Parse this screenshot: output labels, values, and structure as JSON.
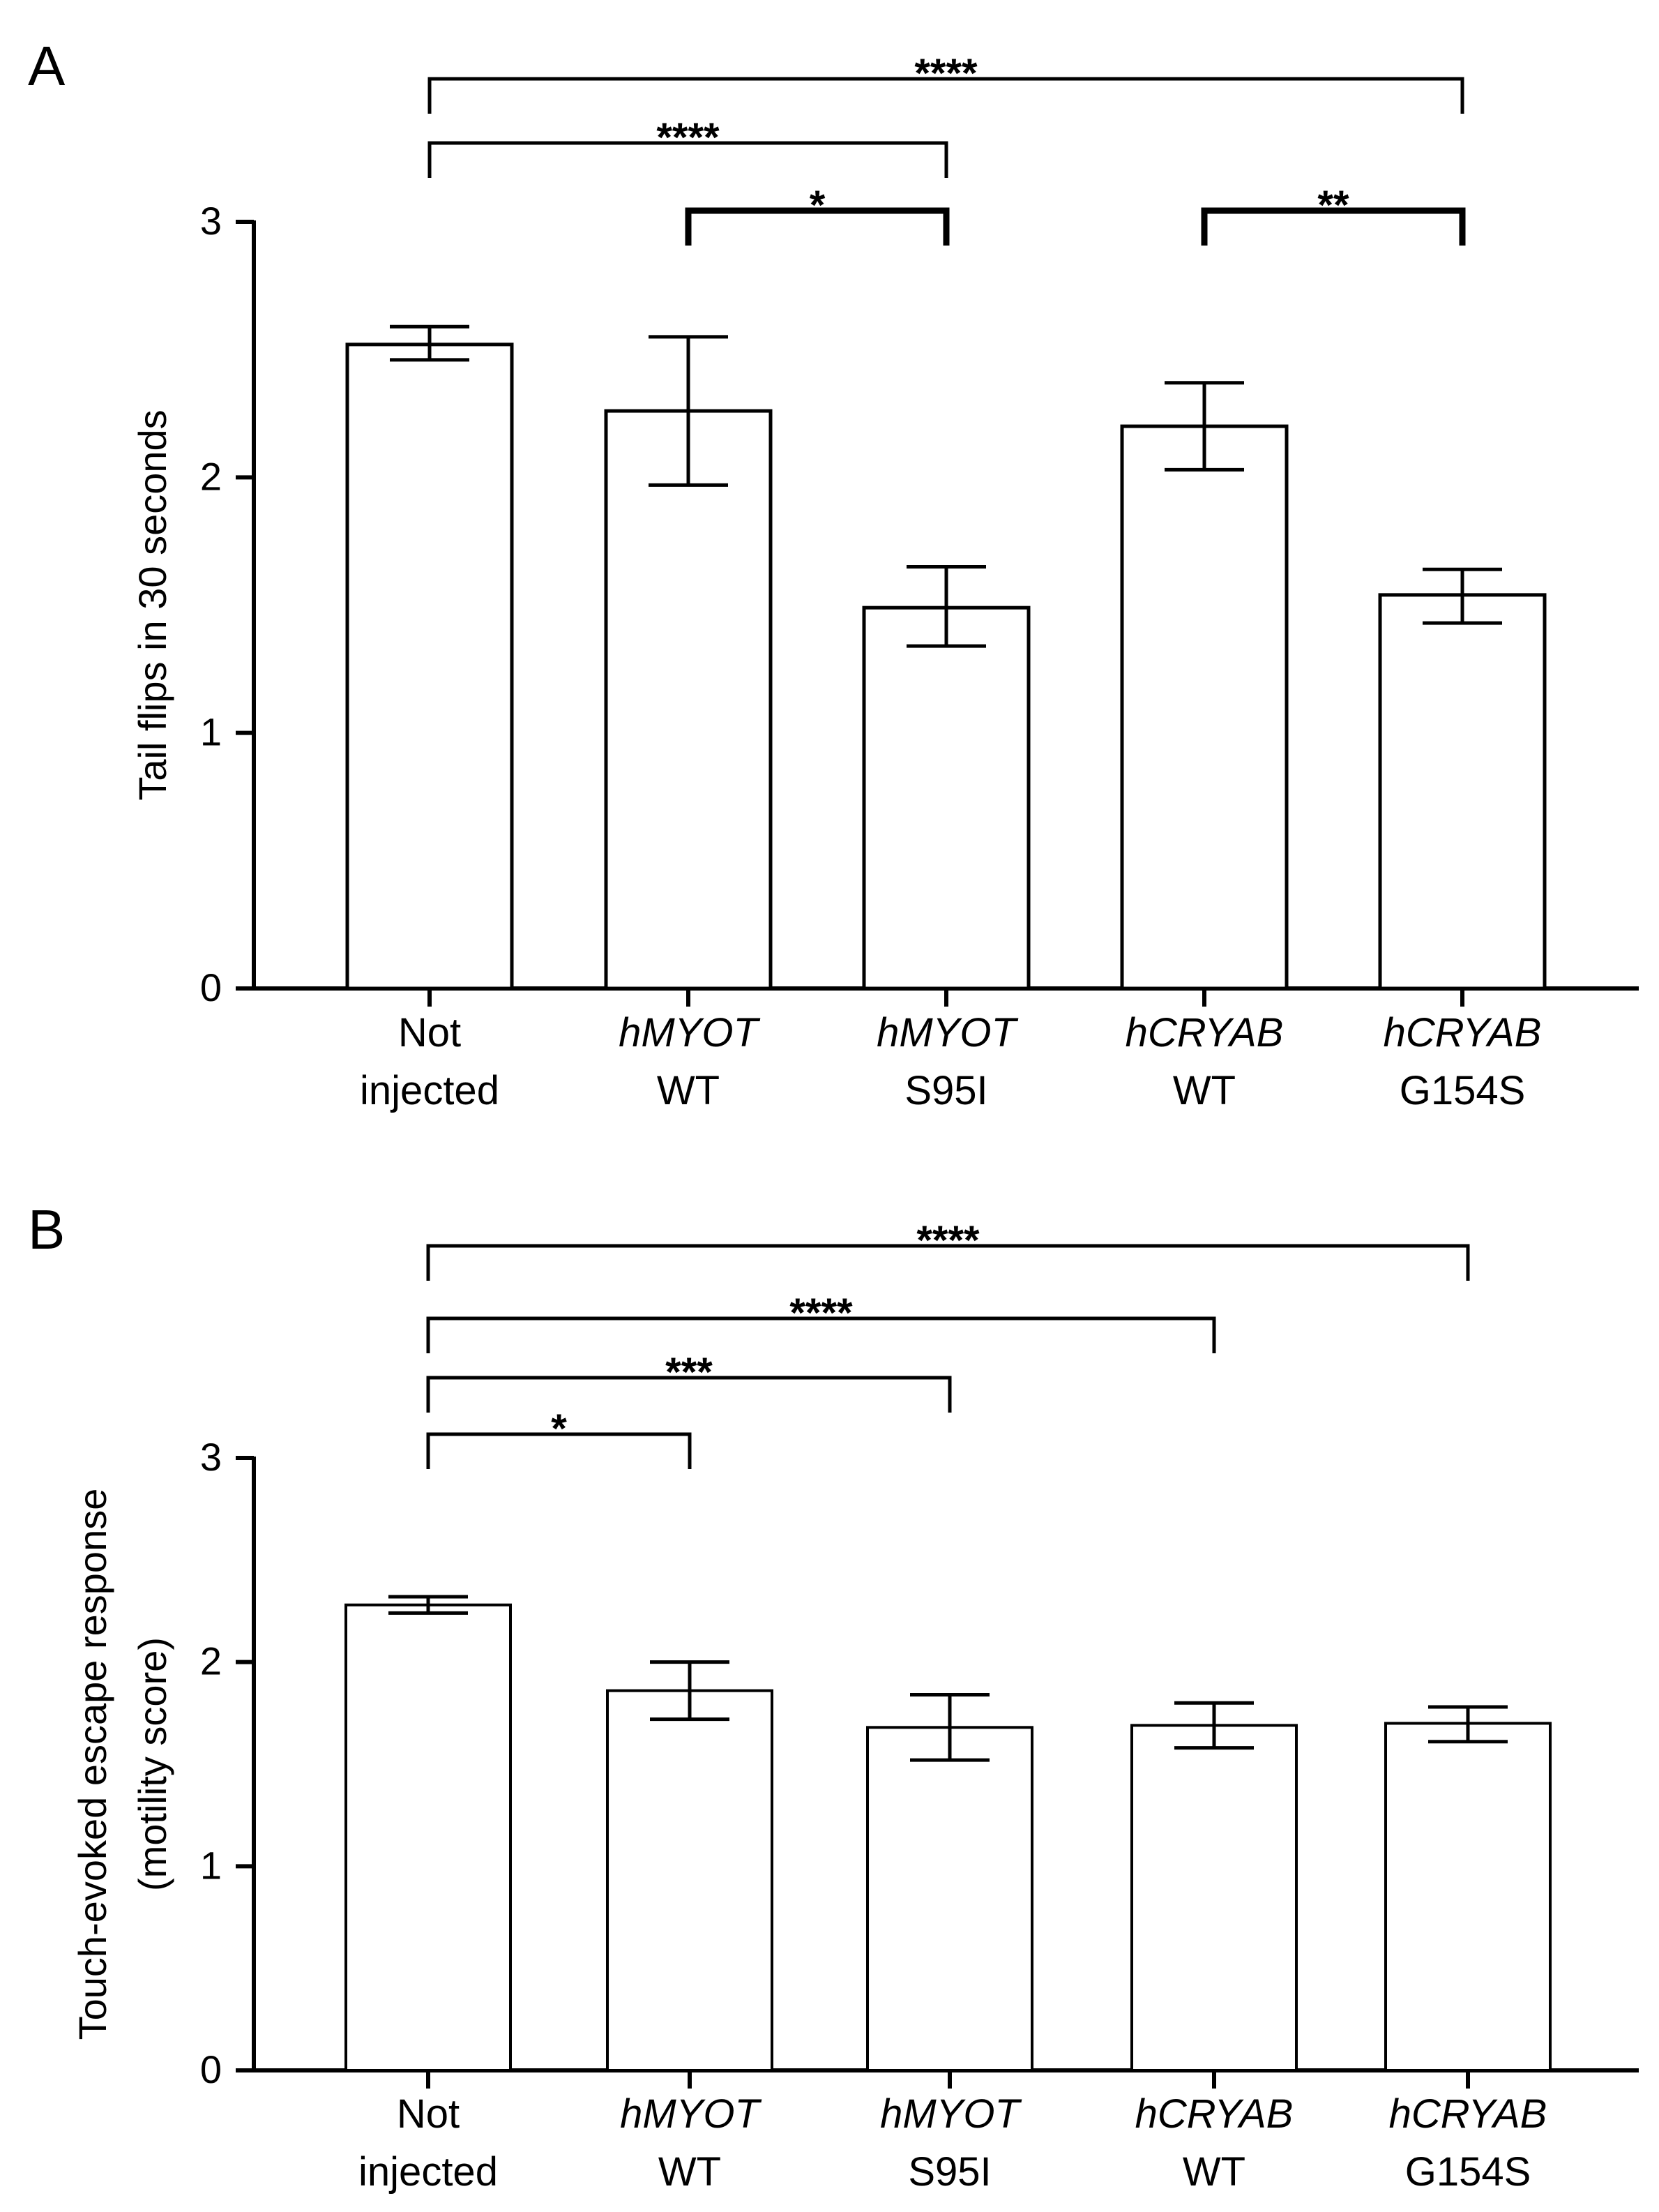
{
  "chart_data": [
    {
      "panel_label": "A",
      "type": "bar",
      "title": "",
      "xlabel": "",
      "ylabel": "Tail flips in 30 seconds",
      "ylim": [
        0,
        3
      ],
      "yticks": [
        "0",
        "1",
        "2",
        "3"
      ],
      "categories": [
        {
          "italic": "",
          "line1": "Not",
          "line2": "injected"
        },
        {
          "italic": "hMYOT",
          "line1": "",
          "line2": "WT"
        },
        {
          "italic": "hMYOT",
          "line1": "",
          "line2": "S95I"
        },
        {
          "italic": "hCRYAB",
          "line1": "",
          "line2": "WT"
        },
        {
          "italic": "hCRYAB",
          "line1": "",
          "line2": "G154S"
        }
      ],
      "values": [
        2.52,
        2.26,
        1.49,
        2.2,
        1.54
      ],
      "error_low": [
        2.46,
        1.97,
        1.34,
        2.03,
        1.43
      ],
      "error_high": [
        2.59,
        2.55,
        1.65,
        2.37,
        1.64
      ],
      "significance": [
        {
          "from": 0,
          "to": 4,
          "label": "****",
          "weight": "thin"
        },
        {
          "from": 0,
          "to": 2,
          "label": "****",
          "weight": "thin"
        },
        {
          "from": 1,
          "to": 2,
          "label": "*",
          "weight": "thick"
        },
        {
          "from": 3,
          "to": 4,
          "label": "**",
          "weight": "thick"
        }
      ]
    },
    {
      "panel_label": "B",
      "type": "bar",
      "title": "",
      "xlabel": "",
      "ylabel": "Touch-evoked escape response",
      "ylabel2": "(motility score)",
      "ylim": [
        0,
        3
      ],
      "yticks": [
        "0",
        "1",
        "2",
        "3"
      ],
      "categories": [
        {
          "italic": "",
          "line1": "Not",
          "line2": "injected"
        },
        {
          "italic": "hMYOT",
          "line1": "",
          "line2": "WT"
        },
        {
          "italic": "hMYOT",
          "line1": "",
          "line2": "S95I"
        },
        {
          "italic": "hCRYAB",
          "line1": "",
          "line2": "WT"
        },
        {
          "italic": "hCRYAB",
          "line1": "",
          "line2": "G154S"
        }
      ],
      "values": [
        2.28,
        1.86,
        1.68,
        1.69,
        1.7
      ],
      "error_low": [
        2.24,
        1.72,
        1.52,
        1.58,
        1.61
      ],
      "error_high": [
        2.32,
        2.0,
        1.84,
        1.8,
        1.78
      ],
      "significance": [
        {
          "from": 0,
          "to": 4,
          "label": "****",
          "weight": "thin"
        },
        {
          "from": 0,
          "to": 3,
          "label": "****",
          "weight": "thin"
        },
        {
          "from": 0,
          "to": 2,
          "label": "***",
          "weight": "thin"
        },
        {
          "from": 0,
          "to": 1,
          "label": "*",
          "weight": "thin"
        }
      ]
    }
  ]
}
